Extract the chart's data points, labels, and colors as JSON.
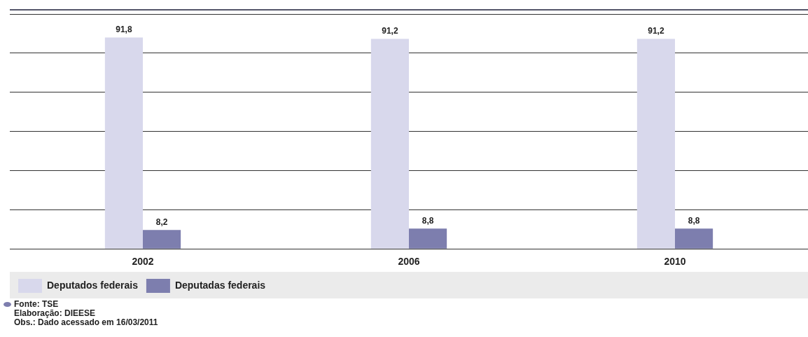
{
  "chart_data": {
    "type": "bar",
    "categories": [
      "2002",
      "2006",
      "2010"
    ],
    "series": [
      {
        "name": "Deputados federais",
        "color": "#d8d8ec",
        "values": [
          91.8,
          91.2,
          91.2
        ],
        "value_labels": [
          "91,8",
          "91,2",
          "91,2"
        ]
      },
      {
        "name": "Deputadas federais",
        "color": "#7d7eae",
        "values": [
          8.2,
          8.8,
          8.8
        ],
        "value_labels": [
          "8,2",
          "8,8",
          "8,8"
        ]
      }
    ],
    "ylim": [
      0,
      102
    ],
    "yticks": [
      {
        "value": 0,
        "label": null
      },
      {
        "value": 17,
        "label": null
      },
      {
        "value": 34,
        "label": null
      },
      {
        "value": 51,
        "label": null
      },
      {
        "value": 68,
        "label": null
      },
      {
        "value": 85,
        "label": null
      },
      {
        "value": 102,
        "label": null
      }
    ],
    "tick_labels": "x",
    "grid": "y",
    "legend": "bottom",
    "annotations": [
      "Fonte: TSE",
      "Elaboração: DIEESE",
      "Obs.: Dado acessado em 16/03/2011"
    ]
  }
}
